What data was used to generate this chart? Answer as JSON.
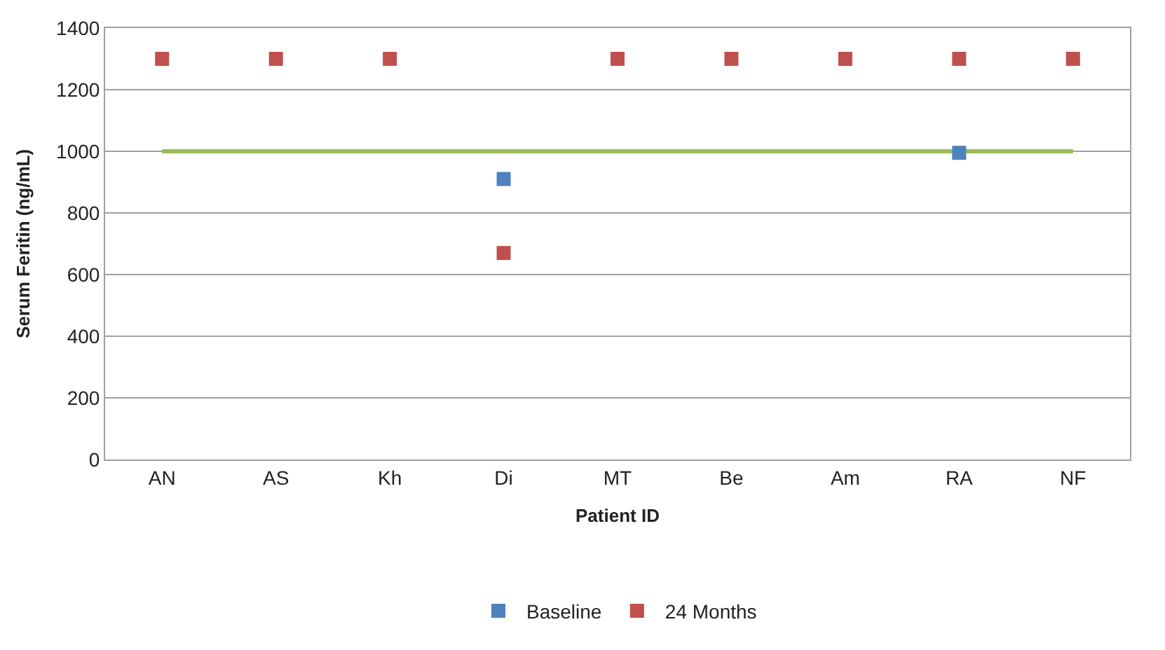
{
  "chart_data": {
    "type": "scatter",
    "xlabel": "Patient ID",
    "ylabel": "Serum Feritin (ng/mL)",
    "categories": [
      "AN",
      "AS",
      "Kh",
      "Di",
      "MT",
      "Be",
      "Am",
      "RA",
      "NF"
    ],
    "series": [
      {
        "name": "Baseline",
        "color": "#4f81bd",
        "values": [
          null,
          null,
          null,
          910,
          null,
          null,
          null,
          995,
          null
        ]
      },
      {
        "name": "24 Months",
        "color": "#c0504d",
        "values": [
          1300,
          1300,
          1300,
          670,
          1300,
          1300,
          1300,
          1300,
          1300
        ]
      }
    ],
    "ref_lines": [
      {
        "axis": "y",
        "value": 1000,
        "label": null,
        "color": "#9bbb59"
      }
    ],
    "ylim": [
      0,
      1400
    ],
    "yticks": [
      0,
      200,
      400,
      600,
      800,
      1000,
      1200,
      1400
    ],
    "grid": "y",
    "legend": "bottom",
    "marker": "square"
  }
}
